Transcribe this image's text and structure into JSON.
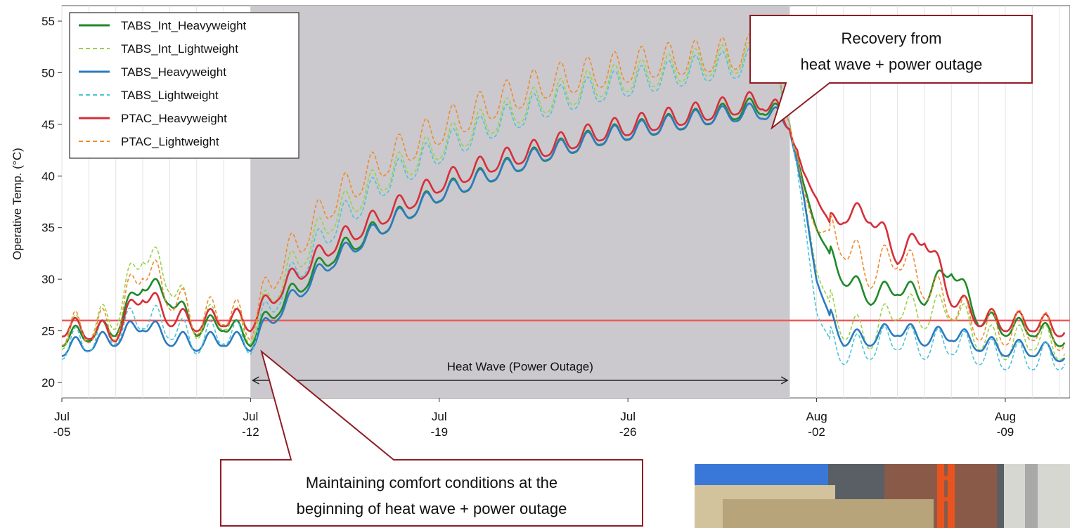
{
  "chart_data": {
    "type": "line",
    "ylabel": "Operative Temp. (°C)",
    "xlabel": "",
    "title": "",
    "ylim": [
      20,
      55
    ],
    "y_ticks": [
      "20",
      "25",
      "30",
      "35",
      "40",
      "45",
      "50",
      "55"
    ],
    "x_ticks": [
      {
        "line1": "Jul",
        "line2": "-05",
        "day": 0
      },
      {
        "line1": "Jul",
        "line2": "-12",
        "day": 7
      },
      {
        "line1": "Jul",
        "line2": "-19",
        "day": 14
      },
      {
        "line1": "Jul",
        "line2": "-26",
        "day": 21
      },
      {
        "line1": "Aug",
        "line2": "-02",
        "day": 28
      },
      {
        "line1": "Aug",
        "line2": "-09",
        "day": 35
      }
    ],
    "x_unit": "date (Jul-05 to Aug-10)",
    "comfort_limit": 26,
    "comfort_limit_color": "#ef5a5a",
    "shaded_region": {
      "label": "Heat Wave (Power Outage)",
      "start_day": 7,
      "end_day": 27,
      "color": "#cbc9cd"
    },
    "grid": true,
    "legend_position": "top-left",
    "series": [
      {
        "name": "TABS_Int_Heavyweight",
        "color": "#1f8a2a",
        "dash": "solid",
        "points": [
          [
            0,
            24
          ],
          [
            2,
            25
          ],
          [
            3,
            29.5
          ],
          [
            4,
            28
          ],
          [
            5,
            25
          ],
          [
            6,
            25.5
          ],
          [
            7,
            24
          ],
          [
            8,
            27
          ],
          [
            10,
            32
          ],
          [
            12,
            35
          ],
          [
            14,
            38
          ],
          [
            16,
            40
          ],
          [
            18,
            42
          ],
          [
            20,
            43.5
          ],
          [
            22,
            44.5
          ],
          [
            24,
            45.5
          ],
          [
            26,
            46.5
          ],
          [
            27,
            45
          ],
          [
            27.5,
            39
          ],
          [
            28,
            35
          ],
          [
            28.5,
            32
          ],
          [
            29,
            30
          ],
          [
            30,
            28
          ],
          [
            31,
            29
          ],
          [
            32,
            28
          ],
          [
            33,
            31
          ],
          [
            34,
            26
          ],
          [
            35,
            25
          ],
          [
            36,
            25
          ],
          [
            37,
            24
          ]
        ]
      },
      {
        "name": "TABS_Int_Lightweight",
        "color": "#9ad14a",
        "dash": "dashed",
        "points": [
          [
            0,
            24
          ],
          [
            2,
            26
          ],
          [
            3,
            32.5
          ],
          [
            4,
            29.5
          ],
          [
            5,
            25
          ],
          [
            6,
            26
          ],
          [
            7,
            24.5
          ],
          [
            8,
            29
          ],
          [
            10,
            35.5
          ],
          [
            12,
            39.5
          ],
          [
            14,
            42.5
          ],
          [
            16,
            45
          ],
          [
            18,
            47
          ],
          [
            20,
            48.5
          ],
          [
            22,
            49.5
          ],
          [
            24,
            50.5
          ],
          [
            26,
            51
          ],
          [
            27,
            46
          ],
          [
            27.5,
            38
          ],
          [
            28,
            31
          ],
          [
            28.5,
            27
          ],
          [
            29,
            25
          ],
          [
            30,
            24
          ],
          [
            31,
            27
          ],
          [
            32,
            26
          ],
          [
            33,
            27
          ],
          [
            34,
            24
          ],
          [
            35,
            23
          ],
          [
            36,
            24
          ],
          [
            37,
            23
          ]
        ]
      },
      {
        "name": "TABS_Heavyweight",
        "color": "#2b7bc0",
        "dash": "solid",
        "points": [
          [
            0,
            23
          ],
          [
            2,
            24
          ],
          [
            3,
            25.5
          ],
          [
            4,
            24
          ],
          [
            5,
            23.5
          ],
          [
            6,
            24
          ],
          [
            7,
            23.5
          ],
          [
            8,
            26.5
          ],
          [
            10,
            31.5
          ],
          [
            12,
            35
          ],
          [
            14,
            38
          ],
          [
            16,
            40
          ],
          [
            18,
            42
          ],
          [
            20,
            43.5
          ],
          [
            22,
            44.5
          ],
          [
            24,
            45.5
          ],
          [
            26,
            46
          ],
          [
            27,
            45
          ],
          [
            27.5,
            38
          ],
          [
            28,
            30
          ],
          [
            28.5,
            26
          ],
          [
            29,
            24
          ],
          [
            30,
            24
          ],
          [
            31,
            25
          ],
          [
            32,
            24
          ],
          [
            33,
            24.5
          ],
          [
            34,
            23.5
          ],
          [
            35,
            23
          ],
          [
            36,
            23
          ],
          [
            37,
            22.5
          ]
        ]
      },
      {
        "name": "TABS_Lightweight",
        "color": "#4cc4d6",
        "dash": "dashed",
        "points": [
          [
            0,
            23
          ],
          [
            2,
            24.5
          ],
          [
            3,
            26
          ],
          [
            4,
            25
          ],
          [
            5,
            23.5
          ],
          [
            6,
            24.5
          ],
          [
            7,
            23.5
          ],
          [
            8,
            28
          ],
          [
            10,
            34.5
          ],
          [
            12,
            39
          ],
          [
            14,
            42
          ],
          [
            16,
            44.5
          ],
          [
            18,
            46.5
          ],
          [
            20,
            48
          ],
          [
            22,
            49
          ],
          [
            24,
            50
          ],
          [
            26,
            50.5
          ],
          [
            27,
            46
          ],
          [
            27.5,
            36
          ],
          [
            28,
            27
          ],
          [
            28.5,
            23.5
          ],
          [
            29,
            22.5
          ],
          [
            30,
            23
          ],
          [
            31,
            24
          ],
          [
            32,
            23
          ],
          [
            33,
            23.5
          ],
          [
            34,
            22.5
          ],
          [
            35,
            22
          ],
          [
            36,
            22
          ],
          [
            37,
            22
          ]
        ]
      },
      {
        "name": "PTAC_Heavyweight",
        "color": "#d62f3a",
        "dash": "solid",
        "points": [
          [
            0,
            25
          ],
          [
            2,
            24.5
          ],
          [
            3,
            28.5
          ],
          [
            4,
            26
          ],
          [
            5,
            25.5
          ],
          [
            6,
            26
          ],
          [
            7,
            25.5
          ],
          [
            8,
            28.5
          ],
          [
            10,
            33
          ],
          [
            12,
            36
          ],
          [
            14,
            39
          ],
          [
            16,
            41
          ],
          [
            18,
            42.5
          ],
          [
            20,
            44
          ],
          [
            22,
            45
          ],
          [
            24,
            46
          ],
          [
            26,
            47
          ],
          [
            27,
            45
          ],
          [
            27.5,
            40
          ],
          [
            28,
            38
          ],
          [
            28.5,
            35
          ],
          [
            29,
            36
          ],
          [
            30,
            36
          ],
          [
            31,
            32
          ],
          [
            32,
            34
          ],
          [
            33,
            28
          ],
          [
            34,
            26
          ],
          [
            35,
            25.5
          ],
          [
            36,
            25.5
          ],
          [
            37,
            25
          ]
        ]
      },
      {
        "name": "PTAC_Lightweight",
        "color": "#f08a2c",
        "dash": "dashed",
        "points": [
          [
            0,
            24.5
          ],
          [
            2,
            25
          ],
          [
            3,
            31
          ],
          [
            4,
            28
          ],
          [
            5,
            25.5
          ],
          [
            6,
            26.5
          ],
          [
            7,
            25
          ],
          [
            8,
            30.5
          ],
          [
            10,
            37
          ],
          [
            12,
            41
          ],
          [
            14,
            44
          ],
          [
            16,
            46.5
          ],
          [
            18,
            48.5
          ],
          [
            20,
            49.5
          ],
          [
            22,
            50.5
          ],
          [
            24,
            51
          ],
          [
            26,
            51.5
          ],
          [
            27,
            46
          ],
          [
            27.5,
            38
          ],
          [
            28,
            35
          ],
          [
            28.5,
            34
          ],
          [
            29,
            33
          ],
          [
            30,
            30
          ],
          [
            31,
            32
          ],
          [
            32,
            29
          ],
          [
            33,
            27
          ],
          [
            34,
            25
          ],
          [
            35,
            24.5
          ],
          [
            36,
            25
          ],
          [
            37,
            24
          ]
        ]
      }
    ],
    "annotations": [
      {
        "name": "recovery",
        "text_line1": "Recovery from",
        "text_line2": "heat wave + power outage"
      },
      {
        "name": "maintaining",
        "text_line1": "Maintaining comfort conditions at the",
        "text_line2": "beginning of heat wave + power outage"
      }
    ]
  }
}
